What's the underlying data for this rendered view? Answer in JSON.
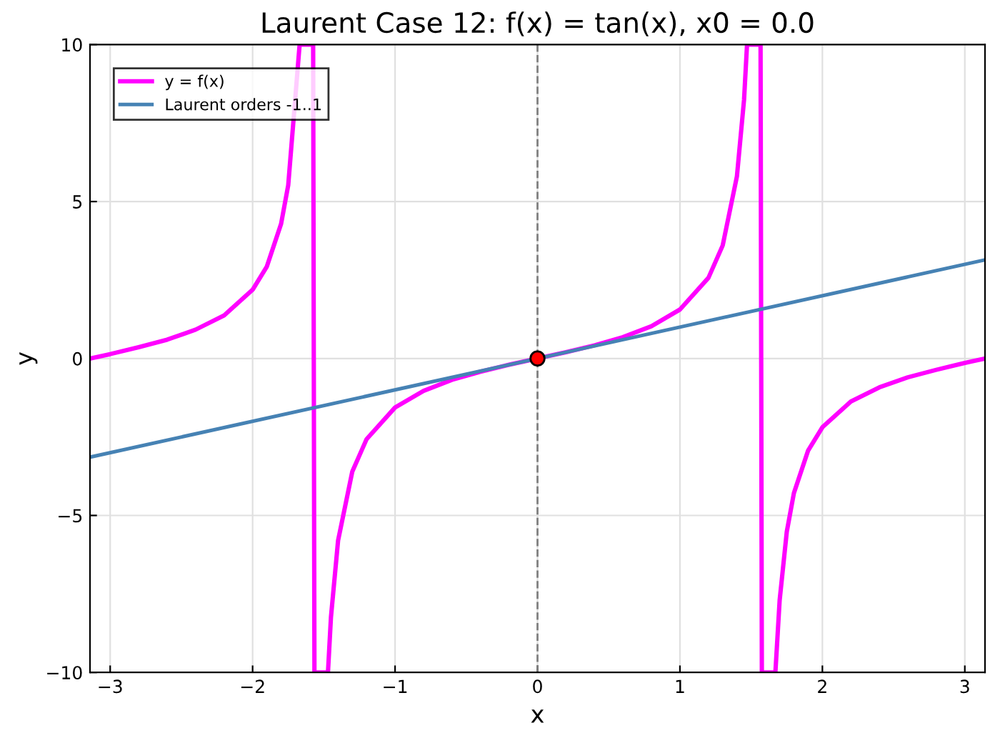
{
  "chart_data": {
    "type": "line",
    "title": "Laurent Case 12: f(x) = tan(x), x0 = 0.0",
    "xlabel": "x",
    "ylabel": "y",
    "xlim": [
      -3.1416,
      3.1416
    ],
    "ylim": [
      -10,
      10
    ],
    "xticks": [
      {
        "value": -3,
        "label": "−3"
      },
      {
        "value": -2,
        "label": "−2"
      },
      {
        "value": -1,
        "label": "−1"
      },
      0,
      1,
      2,
      3
    ],
    "yticks": [
      {
        "value": -10,
        "label": "−10"
      },
      {
        "value": -5,
        "label": "−5"
      },
      0,
      5,
      10
    ],
    "grid": true,
    "legend": "top left",
    "ref_lines": [
      {
        "axis": "x",
        "value": 0,
        "color": "#808080",
        "line_style": "dashed"
      }
    ],
    "series": [
      {
        "name": "y = f(x)",
        "color": "#ff00ff",
        "x": [
          -3.1416,
          -3.0,
          -2.8,
          -2.6,
          -2.4,
          -2.2,
          -2.0,
          -1.9,
          -1.8,
          -1.75,
          -1.67,
          -1.575,
          -1.566,
          -1.471,
          -1.45,
          -1.4,
          -1.3,
          -1.2,
          -1.0,
          -0.8,
          -0.6,
          -0.4,
          -0.2,
          0,
          0.2,
          0.4,
          0.6,
          0.8,
          1.0,
          1.2,
          1.3,
          1.4,
          1.45,
          1.471,
          1.566,
          1.575,
          1.67,
          1.7,
          1.75,
          1.8,
          1.9,
          2.0,
          2.2,
          2.4,
          2.6,
          2.8,
          3.0,
          3.1416
        ],
        "values": [
          0,
          0.14,
          0.36,
          0.6,
          0.92,
          1.37,
          2.19,
          2.93,
          4.29,
          5.52,
          10,
          10,
          -10,
          -10,
          -8.24,
          -5.8,
          -3.6,
          -2.57,
          -1.56,
          -1.03,
          -0.68,
          -0.42,
          -0.2,
          0,
          0.2,
          0.42,
          0.68,
          1.03,
          1.56,
          2.57,
          3.6,
          5.8,
          8.24,
          10,
          10,
          -10,
          -10,
          -7.7,
          -5.52,
          -4.29,
          -2.93,
          -2.19,
          -1.37,
          -0.92,
          -0.6,
          -0.36,
          -0.14,
          0
        ]
      },
      {
        "name": "Laurent orders -1..1",
        "color": "#4682b4",
        "x": [
          -3.14,
          3.14
        ],
        "values": [
          -3.14,
          3.14
        ]
      },
      {
        "color": "#ff0000",
        "type": "scatter",
        "marker": "circle",
        "x": [
          0
        ],
        "values": [
          0
        ]
      }
    ]
  }
}
